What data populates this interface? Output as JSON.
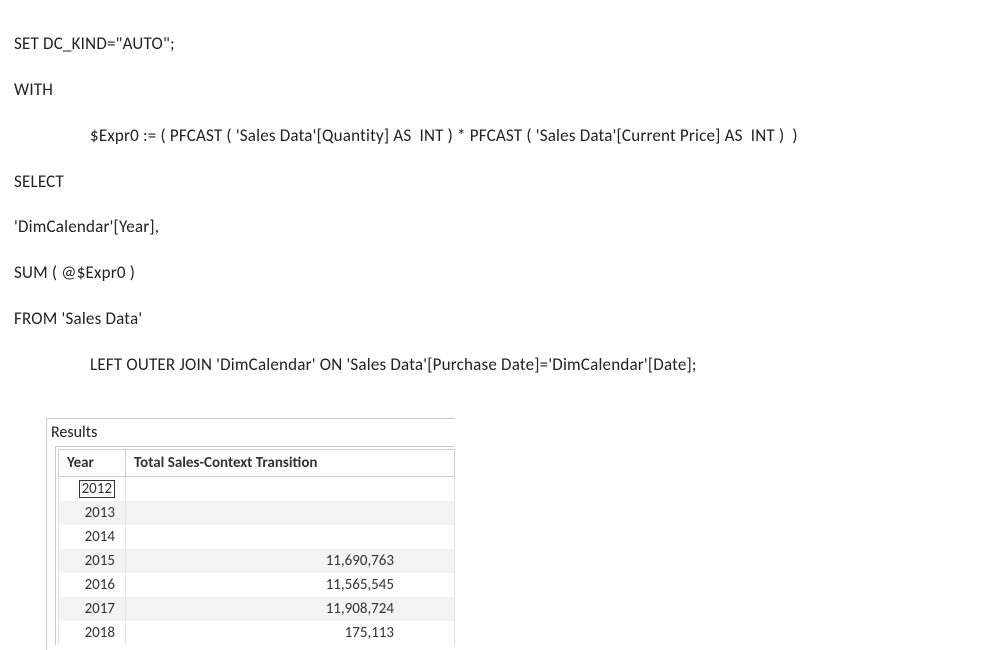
{
  "code": {
    "line1": "SET DC_KIND=\"AUTO\";",
    "line2": "WITH",
    "line3": "$Expr0 := ( PFCAST ( 'Sales Data'[Quantity] AS  INT ) * PFCAST ( 'Sales Data'[Current Price] AS  INT )  )",
    "line4": "SELECT",
    "line5": "'DimCalendar'[Year],",
    "line6": "SUM ( @$Expr0 )",
    "line7": "FROM 'Sales Data'",
    "line8": "LEFT OUTER JOIN 'DimCalendar' ON 'Sales Data'[Purchase Date]='DimCalendar'[Date];"
  },
  "results": {
    "label": "Results",
    "columns": [
      "Year",
      "Total Sales-Context Transition"
    ],
    "rows": [
      {
        "year": "2012",
        "value": "",
        "selected": true
      },
      {
        "year": "2013",
        "value": ""
      },
      {
        "year": "2014",
        "value": ""
      },
      {
        "year": "2015",
        "value": "11,690,763"
      },
      {
        "year": "2016",
        "value": "11,565,545"
      },
      {
        "year": "2017",
        "value": "11,908,724"
      },
      {
        "year": "2018",
        "value": "175,113"
      }
    ],
    "colors": {
      "row_alt_bg": "#f3f3f3",
      "border": "#cfcfcf",
      "outer_border": "#c9c9c9",
      "text": "#333333"
    }
  }
}
